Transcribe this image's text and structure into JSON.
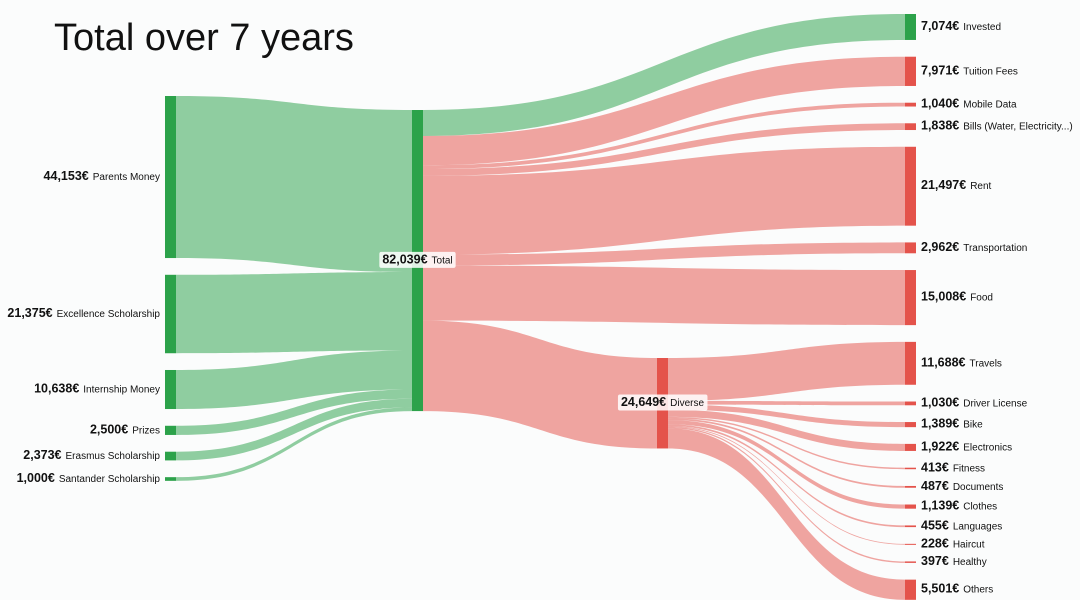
{
  "chart_data": {
    "type": "sankey",
    "title": "Total over 7 years",
    "sources": [
      {
        "name": "Parents Money",
        "value": 44153,
        "value_label": "44,153€",
        "color": "#2ca24a"
      },
      {
        "name": "Excellence Scholarship",
        "value": 21375,
        "value_label": "21,375€",
        "color": "#2ca24a"
      },
      {
        "name": "Internship Money",
        "value": 10638,
        "value_label": "10,638€",
        "color": "#2ca24a"
      },
      {
        "name": "Prizes",
        "value": 2500,
        "value_label": "2,500€",
        "color": "#2ca24a"
      },
      {
        "name": "Erasmus Scholarship",
        "value": 2373,
        "value_label": "2,373€",
        "color": "#2ca24a"
      },
      {
        "name": "Santander Scholarship",
        "value": 1000,
        "value_label": "1,000€",
        "color": "#2ca24a"
      }
    ],
    "total": {
      "name": "Total",
      "value": 82039,
      "value_label": "82,039€",
      "color": "#2ca24a"
    },
    "outflows": [
      {
        "name": "Invested",
        "value": 7074,
        "value_label": "7,074€",
        "color": "#2ca24a"
      },
      {
        "name": "Tuition Fees",
        "value": 7971,
        "value_label": "7,971€",
        "color": "#e4534b"
      },
      {
        "name": "Mobile Data",
        "value": 1040,
        "value_label": "1,040€",
        "color": "#e4534b"
      },
      {
        "name": "Bills (Water, Electricity...)",
        "value": 1838,
        "value_label": "1,838€",
        "color": "#e4534b"
      },
      {
        "name": "Rent",
        "value": 21497,
        "value_label": "21,497€",
        "color": "#e4534b"
      },
      {
        "name": "Transportation",
        "value": 2962,
        "value_label": "2,962€",
        "color": "#e4534b"
      },
      {
        "name": "Food",
        "value": 15008,
        "value_label": "15,008€",
        "color": "#e4534b"
      },
      {
        "name": "Diverse",
        "value": 24649,
        "value_label": "24,649€",
        "color": "#e4534b",
        "children": [
          {
            "name": "Travels",
            "value": 11688,
            "value_label": "11,688€",
            "color": "#e4534b"
          },
          {
            "name": "Driver License",
            "value": 1030,
            "value_label": "1,030€",
            "color": "#e4534b"
          },
          {
            "name": "Bike",
            "value": 1389,
            "value_label": "1,389€",
            "color": "#e4534b"
          },
          {
            "name": "Electronics",
            "value": 1922,
            "value_label": "1,922€",
            "color": "#e4534b"
          },
          {
            "name": "Fitness",
            "value": 413,
            "value_label": "413€",
            "color": "#e4534b"
          },
          {
            "name": "Documents",
            "value": 487,
            "value_label": "487€",
            "color": "#e4534b"
          },
          {
            "name": "Clothes",
            "value": 1139,
            "value_label": "1,139€",
            "color": "#e4534b"
          },
          {
            "name": "Languages",
            "value": 455,
            "value_label": "455€",
            "color": "#e4534b"
          },
          {
            "name": "Haircut",
            "value": 228,
            "value_label": "228€",
            "color": "#e4534b"
          },
          {
            "name": "Healthy",
            "value": 397,
            "value_label": "397€",
            "color": "#e4534b"
          },
          {
            "name": "Others",
            "value": 5501,
            "value_label": "5,501€",
            "color": "#e4534b"
          }
        ]
      }
    ]
  }
}
